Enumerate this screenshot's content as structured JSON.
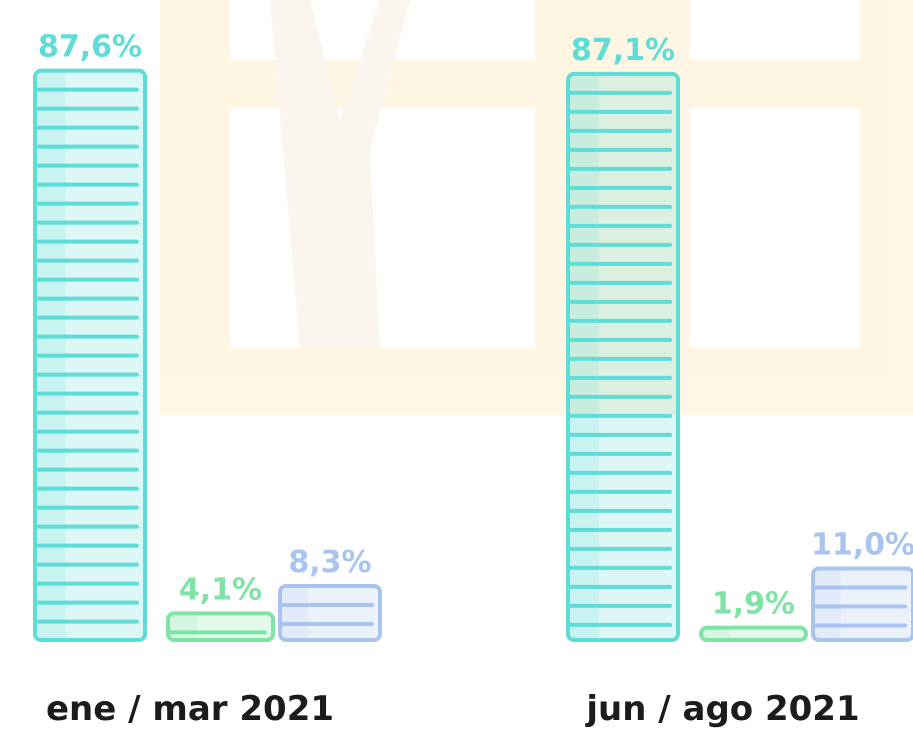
{
  "chart_data": {
    "type": "bar",
    "categories": [
      "ene / mar 2021",
      "jun / ago 2021"
    ],
    "series": [
      {
        "color": "#5fdcd6",
        "values": [
          87.6,
          87.1
        ],
        "value_labels": [
          "87,6%",
          "87,1%"
        ]
      },
      {
        "color": "#7fe3a6",
        "values": [
          4.1,
          1.9
        ],
        "value_labels": [
          "4,1%",
          "1,9%"
        ]
      },
      {
        "color": "#a9c4ef",
        "values": [
          8.3,
          11.0
        ],
        "value_labels": [
          "8,3%",
          "11,0%"
        ]
      }
    ]
  }
}
